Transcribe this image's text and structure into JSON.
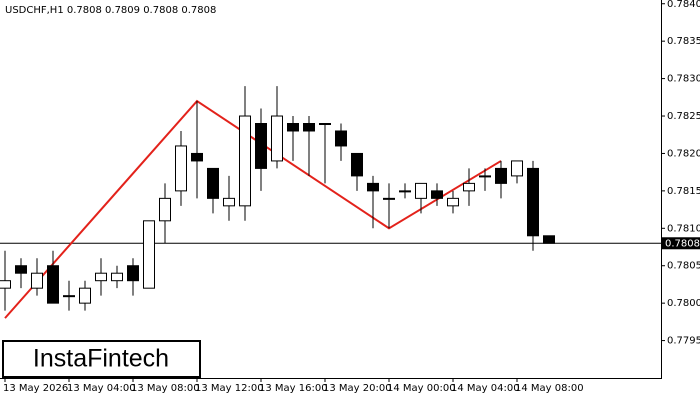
{
  "chart_data": {
    "type": "candlestick",
    "title": "USDCHF,H1  0.7808 0.7809 0.7808 0.7808",
    "categories": [
      "13 May 2026",
      null,
      null,
      null,
      "13 May 04:00",
      null,
      null,
      null,
      "13 May 08:00",
      null,
      null,
      null,
      "13 May 12:00",
      null,
      null,
      null,
      "13 May 16:00",
      null,
      null,
      null,
      "13 May 20:00",
      null,
      null,
      null,
      "14 May 00:00",
      null,
      null,
      null,
      "14 May 04:00",
      null,
      null,
      null,
      "14 May 08:00",
      null,
      null
    ],
    "open": [
      0.7802,
      0.7805,
      0.7802,
      0.7805,
      0.7801,
      0.78,
      0.7803,
      0.7803,
      0.7805,
      0.7802,
      0.7811,
      0.7815,
      0.782,
      0.7818,
      0.7813,
      0.7813,
      0.7824,
      0.7819,
      0.7824,
      0.7824,
      0.7824,
      0.7823,
      0.782,
      0.7816,
      0.7814,
      0.7815,
      0.7814,
      0.7815,
      0.7813,
      0.7815,
      0.7817,
      0.7818,
      0.7817,
      0.7818,
      0.7809
    ],
    "high": [
      0.7807,
      0.7806,
      0.7806,
      0.7807,
      0.7803,
      0.7803,
      0.7806,
      0.7805,
      0.7806,
      0.7811,
      0.7816,
      0.7823,
      0.7827,
      0.7818,
      0.7817,
      0.7829,
      0.7826,
      0.7829,
      0.7825,
      0.7825,
      0.7824,
      0.7824,
      0.782,
      0.7817,
      0.7816,
      0.7816,
      0.7816,
      0.7816,
      0.7815,
      0.7818,
      0.7818,
      0.7819,
      0.7819,
      0.7819,
      0.7809
    ],
    "low": [
      0.7799,
      0.7802,
      0.7801,
      0.78,
      0.7799,
      0.7799,
      0.7801,
      0.7802,
      0.7801,
      0.7802,
      0.7808,
      0.7813,
      0.7814,
      0.7812,
      0.7811,
      0.7811,
      0.7815,
      0.7818,
      0.7819,
      0.7817,
      0.7816,
      0.7819,
      0.7815,
      0.781,
      0.781,
      0.7814,
      0.7812,
      0.7813,
      0.7812,
      0.7813,
      0.7815,
      0.7814,
      0.7816,
      0.7807,
      0.7808
    ],
    "close": [
      0.7803,
      0.7804,
      0.7804,
      0.78,
      0.7801,
      0.7802,
      0.7804,
      0.7804,
      0.7803,
      0.7811,
      0.7814,
      0.7821,
      0.7819,
      0.7814,
      0.7814,
      0.7825,
      0.7818,
      0.7825,
      0.7823,
      0.7823,
      0.7824,
      0.7821,
      0.7817,
      0.7815,
      0.7814,
      0.7815,
      0.7816,
      0.7814,
      0.7814,
      0.7816,
      0.7817,
      0.7816,
      0.7819,
      0.7809,
      0.7808
    ],
    "up_color": "#ffffff",
    "down_color": "#000000",
    "pattern": {
      "color": "#e3221b",
      "x": [
        0,
        12,
        24,
        31
      ],
      "values": [
        0.7798,
        0.7827,
        0.781,
        0.7819
      ]
    },
    "last_price": 0.7808,
    "ylim": [
      0.779,
      0.78405
    ],
    "yticks": [
      0.7795,
      {
        "value": 0.78,
        "label": "0.7800"
      },
      0.7805,
      {
        "value": 0.781,
        "label": "0.7810"
      },
      0.7815,
      {
        "value": 0.782,
        "label": "0.7820"
      },
      0.7825,
      {
        "value": 0.783,
        "label": "0.7830"
      },
      0.7835,
      {
        "value": 0.784,
        "label": "0.7840"
      }
    ],
    "logo": "InstaFintech"
  }
}
